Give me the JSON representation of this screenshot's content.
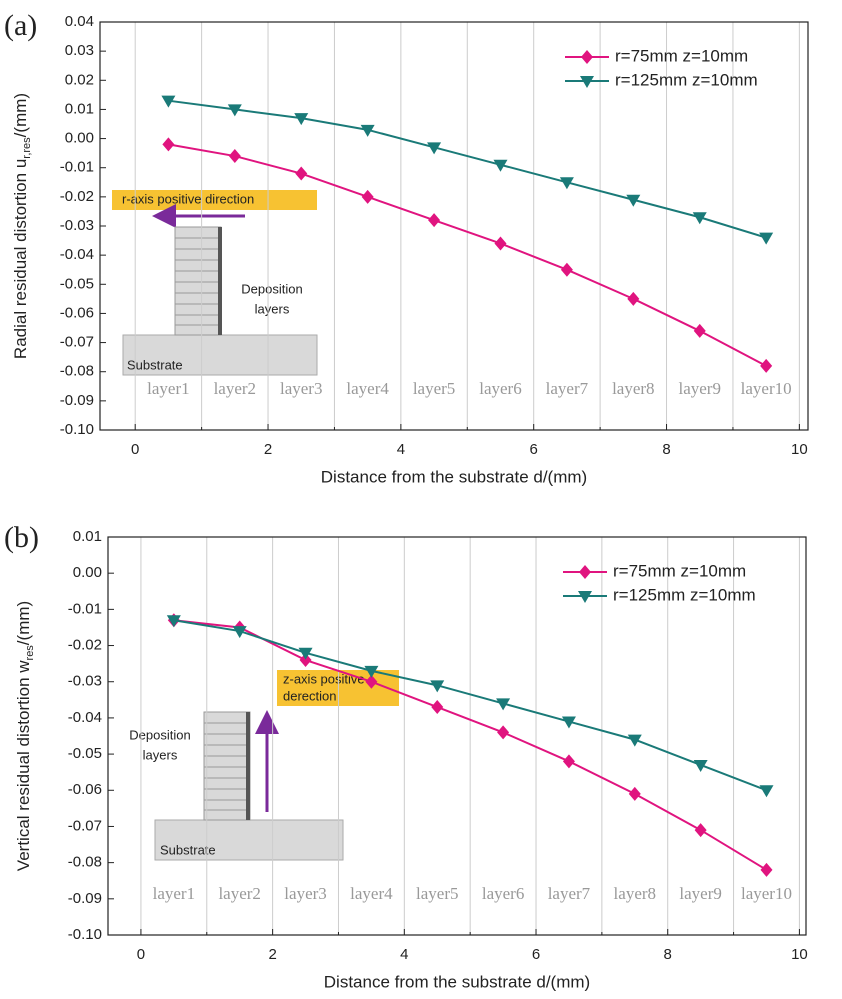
{
  "chart_data": [
    {
      "type": "line",
      "panel_label": "(a)",
      "xlabel": "Distance from the substrate d/(mm)",
      "ylabel": {
        "main": "Radial residual distortion u",
        "sub": "r,res",
        "tail": "/(mm)"
      },
      "xlim": [
        -0.53,
        10.13
      ],
      "ylim": [
        -0.1,
        0.04
      ],
      "xticks": [
        0,
        2,
        4,
        6,
        8,
        10
      ],
      "xminorticks": [
        1,
        3,
        5,
        7,
        9
      ],
      "yticks": [
        0.04,
        0.03,
        0.02,
        0.01,
        {
          "value": 0,
          "label": "0.00"
        },
        -0.01,
        -0.02,
        -0.03,
        -0.04,
        -0.05,
        -0.06,
        -0.07,
        -0.08,
        -0.09,
        {
          "value": -0.1,
          "label": "-0.10"
        }
      ],
      "grid": true,
      "legend": "upper right",
      "x": [
        0.5,
        1.5,
        2.5,
        3.5,
        4.5,
        5.5,
        6.5,
        7.5,
        8.5,
        9.5
      ],
      "layer_labels": [
        "layer1",
        "layer2",
        "layer3",
        "layer4",
        "layer5",
        "layer6",
        "layer7",
        "layer8",
        "layer9",
        "layer10"
      ],
      "series": [
        {
          "name": "r=75mm z=10mm",
          "color": "#e0147f",
          "marker": "diamond",
          "values": [
            -0.002,
            -0.006,
            -0.012,
            -0.02,
            -0.028,
            -0.036,
            -0.045,
            -0.055,
            -0.066,
            -0.078
          ]
        },
        {
          "name": "r=125mm z=10mm",
          "color": "#1a7a78",
          "marker": "triangle-down",
          "values": [
            0.013,
            0.01,
            0.007,
            0.003,
            -0.003,
            -0.009,
            -0.015,
            -0.021,
            -0.027,
            -0.034
          ]
        }
      ],
      "inset": {
        "direction": [
          "r-axis positive direction"
        ],
        "deposition": [
          "Deposition",
          "layers"
        ],
        "substrate": "Substrate"
      }
    },
    {
      "type": "line",
      "panel_label": "(b)",
      "xlabel": "Distance from the substrate d/(mm)",
      "ylabel": {
        "main": "Vertical residual distortion w",
        "sub": "res",
        "tail": "/(mm)"
      },
      "xlim": [
        -0.5,
        10.1
      ],
      "ylim": [
        -0.1,
        0.01
      ],
      "xticks": [
        0,
        2,
        4,
        6,
        8,
        10
      ],
      "xminorticks": [
        1,
        3,
        5,
        7,
        9
      ],
      "yticks": [
        0.01,
        {
          "value": 0,
          "label": "0.00"
        },
        -0.01,
        -0.02,
        -0.03,
        -0.04,
        -0.05,
        -0.06,
        -0.07,
        -0.08,
        -0.09,
        {
          "value": -0.1,
          "label": "-0.10"
        }
      ],
      "grid": true,
      "legend": "upper right",
      "x": [
        0.5,
        1.5,
        2.5,
        3.5,
        4.5,
        5.5,
        6.5,
        7.5,
        8.5,
        9.5
      ],
      "layer_labels": [
        "layer1",
        "layer2",
        "layer3",
        "layer4",
        "layer5",
        "layer6",
        "layer7",
        "layer8",
        "layer9",
        "layer10"
      ],
      "series": [
        {
          "name": "r=75mm z=10mm",
          "color": "#e0147f",
          "marker": "diamond",
          "values": [
            -0.013,
            -0.015,
            -0.024,
            -0.03,
            -0.037,
            -0.044,
            -0.052,
            -0.061,
            -0.071,
            -0.082
          ]
        },
        {
          "name": "r=125mm z=10mm",
          "color": "#1a7a78",
          "marker": "triangle-down",
          "values": [
            -0.013,
            -0.016,
            -0.022,
            -0.027,
            -0.031,
            -0.036,
            -0.041,
            -0.046,
            -0.053,
            -0.06
          ]
        }
      ],
      "inset": {
        "direction": [
          "z-axis positive",
          "derection"
        ],
        "deposition": [
          "Deposition",
          "layers"
        ],
        "substrate": "Substrate"
      }
    }
  ]
}
